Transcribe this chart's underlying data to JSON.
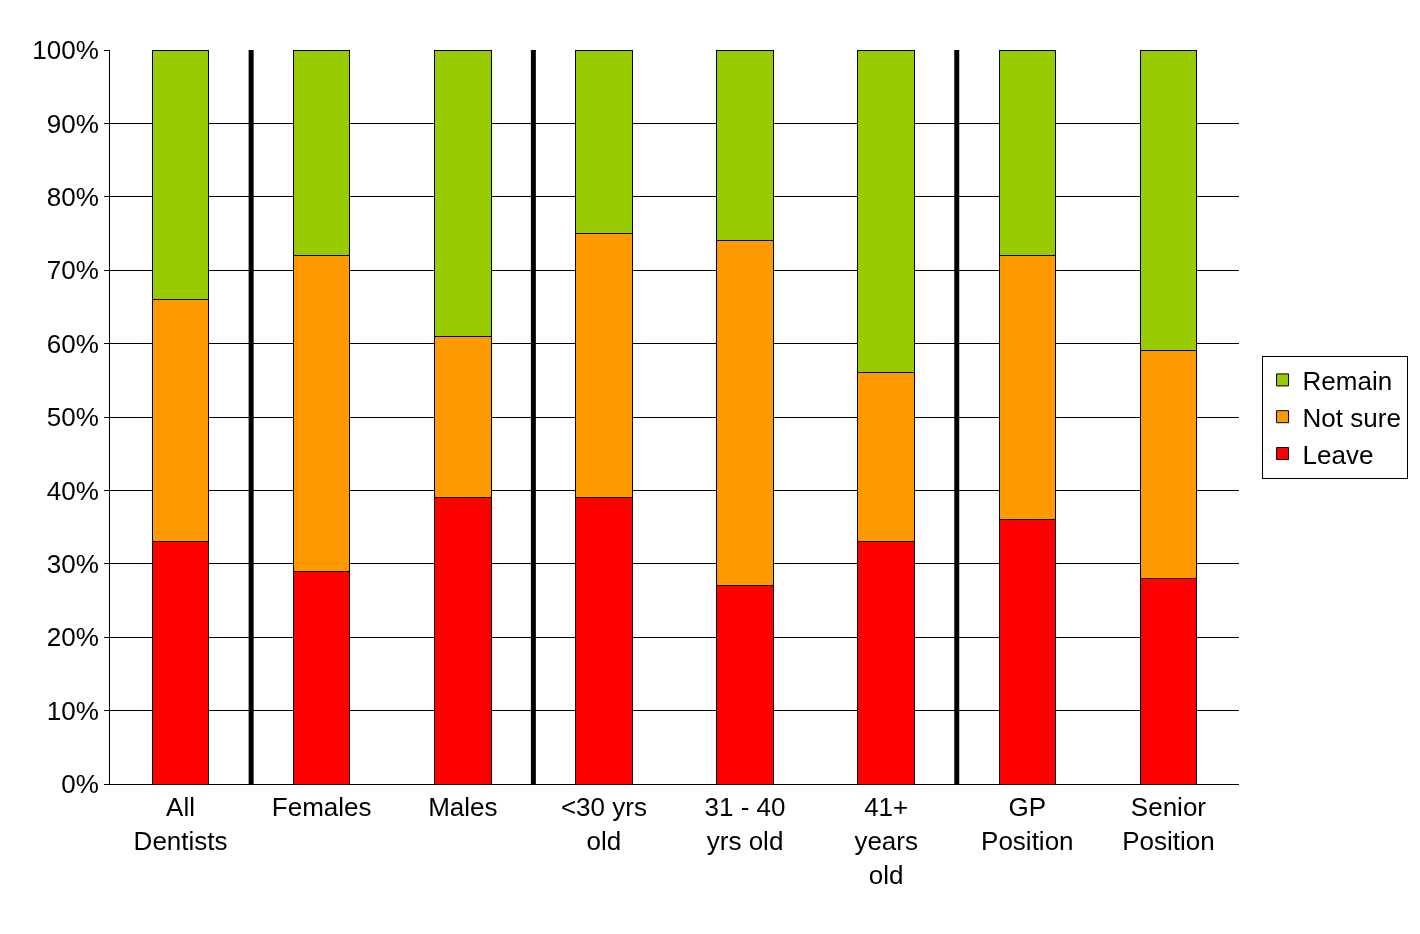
{
  "chart_data": {
    "type": "bar",
    "stacked": true,
    "categories": [
      "All Dentists",
      "Females",
      "Males",
      "<30 yrs old",
      "31 - 40 yrs old",
      "41+ years old",
      "GP Position",
      "Senior Position"
    ],
    "series": [
      {
        "name": "Leave",
        "color": "#ff0000",
        "values": [
          33,
          29,
          39,
          39,
          27,
          33,
          36,
          28
        ]
      },
      {
        "name": "Not sure",
        "color": "#ff9900",
        "values": [
          33,
          43,
          22,
          36,
          47,
          23,
          36,
          31
        ]
      },
      {
        "name": "Remain",
        "color": "#99cc00",
        "values": [
          34,
          28,
          39,
          25,
          26,
          44,
          28,
          41
        ]
      }
    ],
    "ylim": [
      0,
      100
    ],
    "yticks": [
      {
        "value": 0,
        "label": "0%"
      },
      {
        "value": 10,
        "label": "10%"
      },
      {
        "value": 20,
        "label": "20%"
      },
      {
        "value": 30,
        "label": "30%"
      },
      {
        "value": 40,
        "label": "40%"
      },
      {
        "value": 50,
        "label": "50%"
      },
      {
        "value": 60,
        "label": "60%"
      },
      {
        "value": 70,
        "label": "70%"
      },
      {
        "value": 80,
        "label": "80%"
      },
      {
        "value": 90,
        "label": "90%"
      },
      {
        "value": 100,
        "label": "100%"
      }
    ],
    "grid": "y",
    "legend": "right"
  }
}
